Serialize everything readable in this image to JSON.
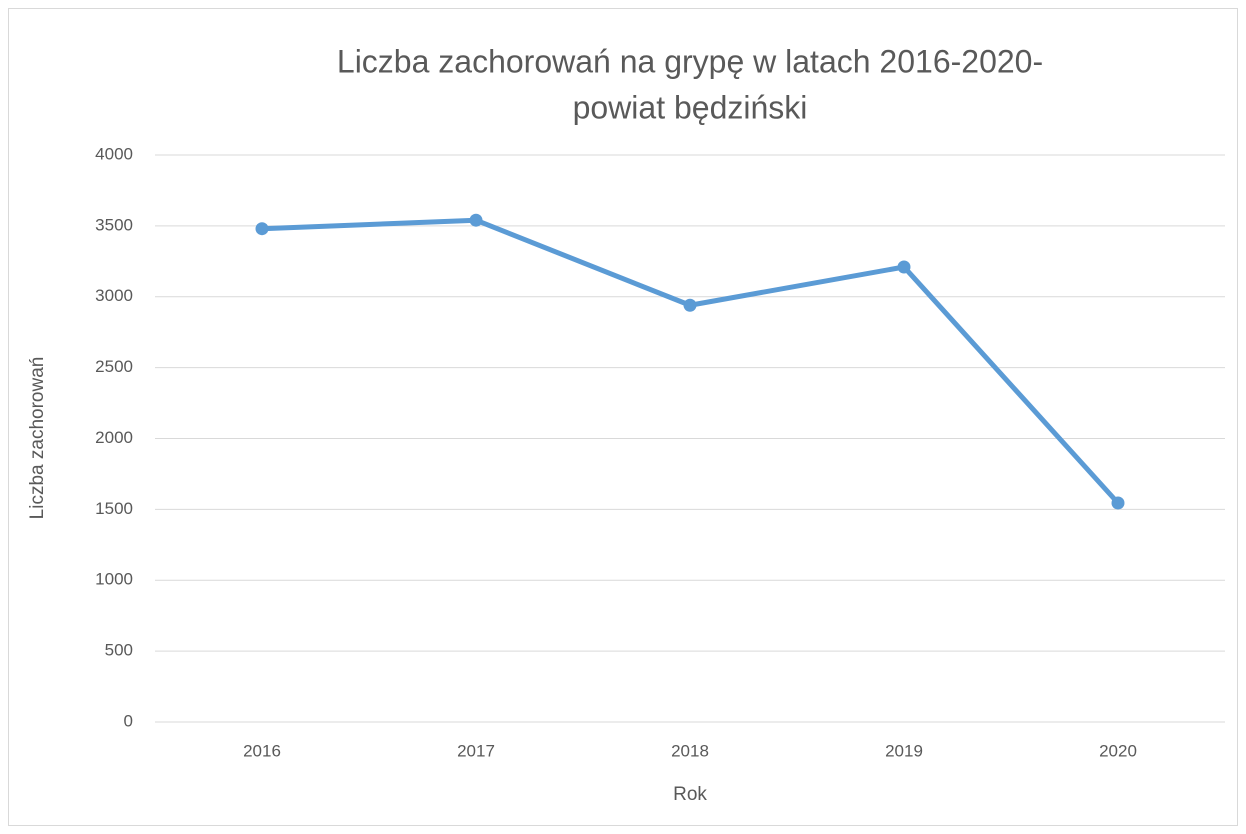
{
  "chart_data": {
    "type": "line",
    "title": [
      "Liczba zachorowań na grypę w latach 2016-2020-",
      "powiat będziński"
    ],
    "x_label": "Rok",
    "y_label": "Liczba zachorowań",
    "categories": [
      "2016",
      "2017",
      "2018",
      "2019",
      "2020"
    ],
    "series": [
      {
        "name": "Liczba zachorowań",
        "color": "#5b9bd5",
        "values": [
          3480,
          3540,
          2940,
          3210,
          1545
        ]
      }
    ],
    "ylim": [
      0,
      4000
    ],
    "yticks": [
      0,
      500,
      1000,
      1500,
      2000,
      2500,
      3000,
      3500,
      4000
    ],
    "grid": true
  }
}
